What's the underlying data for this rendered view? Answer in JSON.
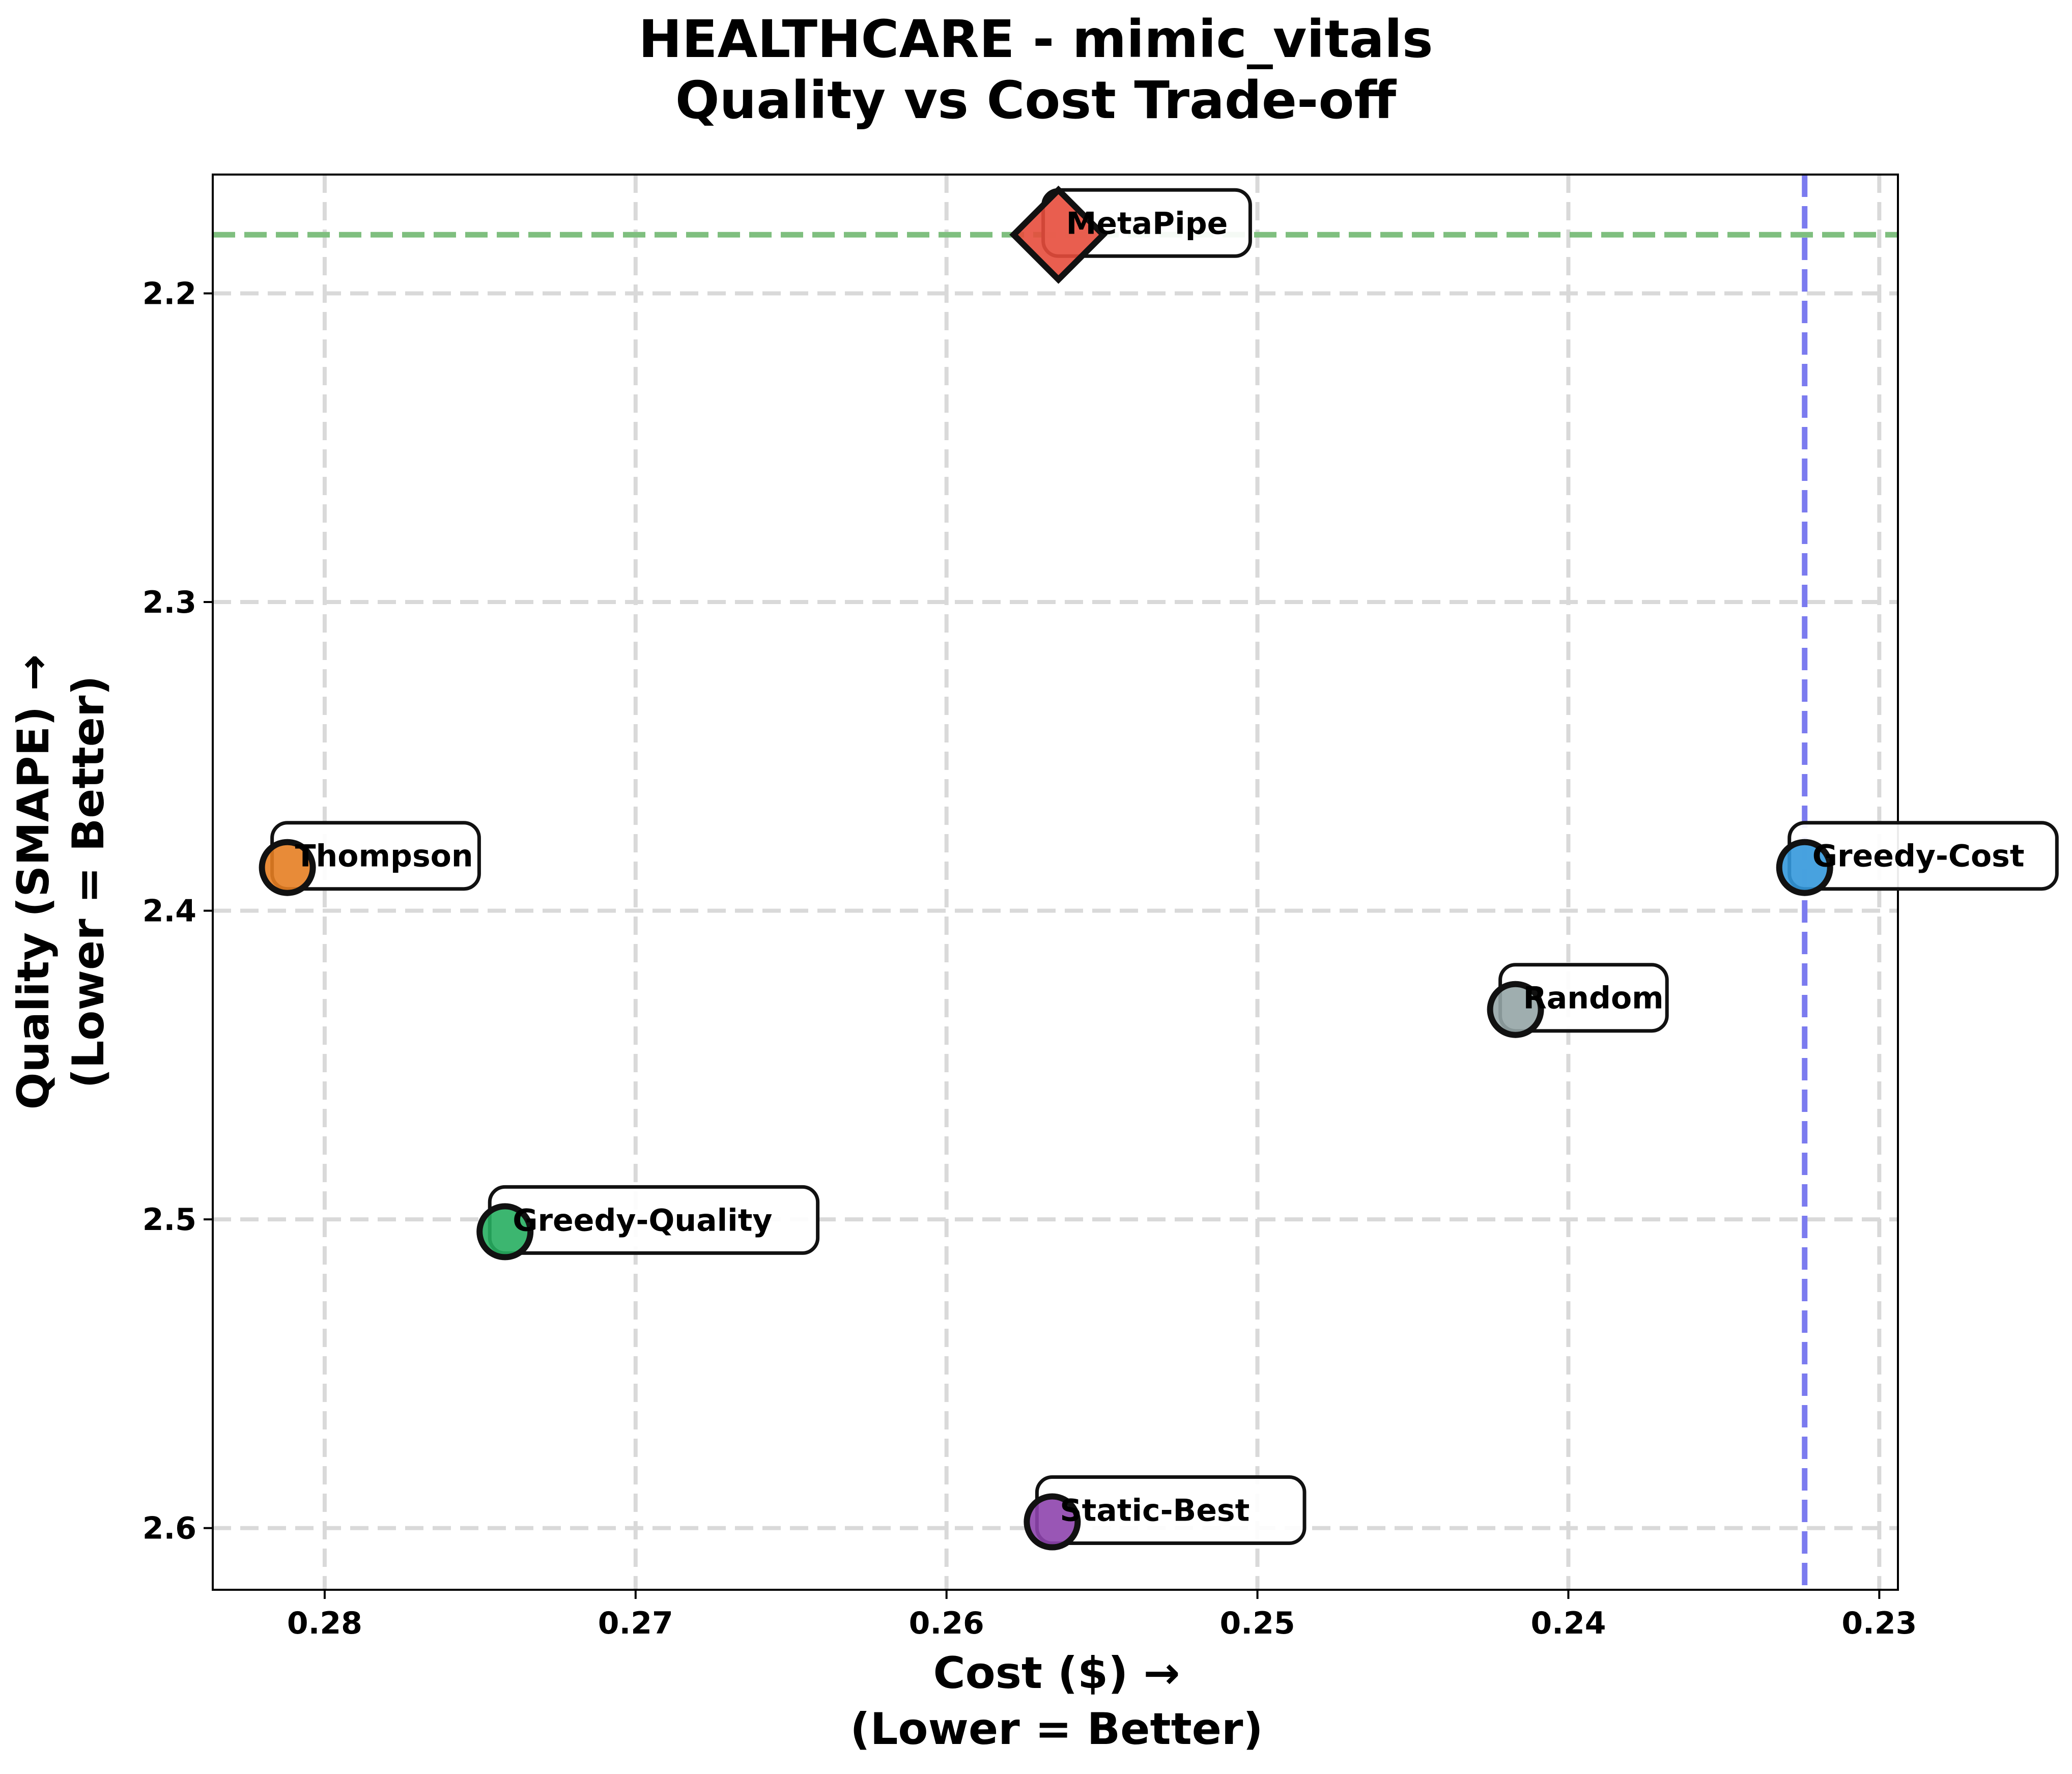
{
  "chart_data": {
    "type": "scatter",
    "title_lines": [
      "HEALTHCARE - mimic_vitals",
      "Quality vs Cost Trade-off"
    ],
    "xlabel_lines": [
      "Cost ($) →",
      "(Lower = Better)"
    ],
    "ylabel_lines": [
      "Quality (SMAPE) →",
      "(Lower = Better)"
    ],
    "x_inverted": true,
    "y_inverted": true,
    "xlim": [
      0.2836,
      0.2294
    ],
    "ylim": [
      2.1615,
      2.62
    ],
    "xticks": [
      0.28,
      0.27,
      0.26,
      0.25,
      0.24,
      0.23
    ],
    "xtick_labels": [
      "0.28",
      "0.27",
      "0.26",
      "0.25",
      "0.24",
      "0.23"
    ],
    "yticks": [
      2.2,
      2.3,
      2.4,
      2.5,
      2.6
    ],
    "ytick_labels": [
      "2.2",
      "2.3",
      "2.4",
      "2.5",
      "2.6"
    ],
    "grid": true,
    "reference_lines": [
      {
        "orientation": "horizontal",
        "value": 2.181,
        "color": "#7fbf7f"
      },
      {
        "orientation": "vertical",
        "value": 0.2324,
        "color": "#7b7bef"
      }
    ],
    "points": [
      {
        "name": "MetaPipe",
        "x": 0.2564,
        "y": 2.181,
        "color": "#e74c3c",
        "marker": "diamond"
      },
      {
        "name": "Thompson",
        "x": 0.2812,
        "y": 2.386,
        "color": "#e67e22",
        "marker": "circle"
      },
      {
        "name": "Greedy-Cost",
        "x": 0.2324,
        "y": 2.386,
        "color": "#3498db",
        "marker": "circle"
      },
      {
        "name": "Random",
        "x": 0.2417,
        "y": 2.432,
        "color": "#95a5a6",
        "marker": "circle"
      },
      {
        "name": "Greedy-Quality",
        "x": 0.2742,
        "y": 2.504,
        "color": "#27ae60",
        "marker": "circle"
      },
      {
        "name": "Static-Best",
        "x": 0.2566,
        "y": 2.598,
        "color": "#8e44ad",
        "marker": "circle"
      }
    ]
  }
}
